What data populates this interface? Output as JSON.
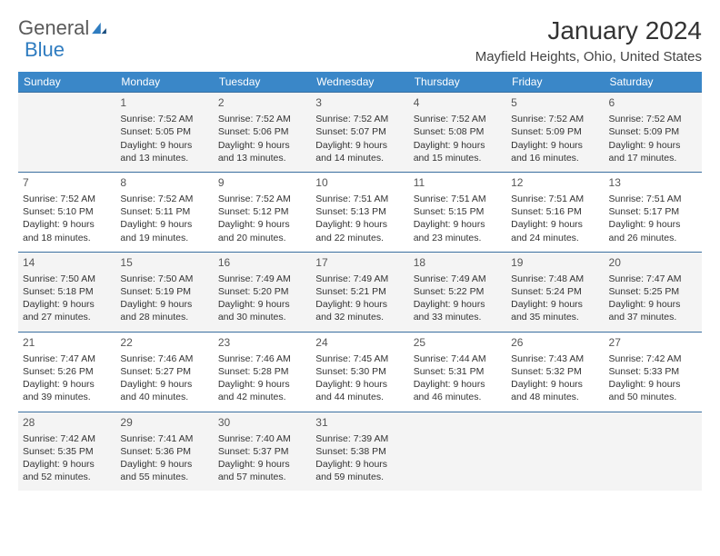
{
  "logo": {
    "part1": "General",
    "part2": "Blue"
  },
  "header": {
    "month_title": "January 2024",
    "location": "Mayfield Heights, Ohio, United States"
  },
  "style": {
    "header_bg": "#3a87c8",
    "header_fg": "#ffffff",
    "row_border": "#3a6fa0",
    "alt_row_bg": "#f4f4f4",
    "logo_gray": "#5a5a5a",
    "logo_blue": "#2f7cc0",
    "font_small": "10.5",
    "font_day": "12",
    "font_title": "28",
    "font_loc": "15"
  },
  "weekdays": [
    "Sunday",
    "Monday",
    "Tuesday",
    "Wednesday",
    "Thursday",
    "Friday",
    "Saturday"
  ],
  "weeks": [
    [
      null,
      {
        "n": "1",
        "sr": "Sunrise: 7:52 AM",
        "ss": "Sunset: 5:05 PM",
        "d1": "Daylight: 9 hours",
        "d2": "and 13 minutes."
      },
      {
        "n": "2",
        "sr": "Sunrise: 7:52 AM",
        "ss": "Sunset: 5:06 PM",
        "d1": "Daylight: 9 hours",
        "d2": "and 13 minutes."
      },
      {
        "n": "3",
        "sr": "Sunrise: 7:52 AM",
        "ss": "Sunset: 5:07 PM",
        "d1": "Daylight: 9 hours",
        "d2": "and 14 minutes."
      },
      {
        "n": "4",
        "sr": "Sunrise: 7:52 AM",
        "ss": "Sunset: 5:08 PM",
        "d1": "Daylight: 9 hours",
        "d2": "and 15 minutes."
      },
      {
        "n": "5",
        "sr": "Sunrise: 7:52 AM",
        "ss": "Sunset: 5:09 PM",
        "d1": "Daylight: 9 hours",
        "d2": "and 16 minutes."
      },
      {
        "n": "6",
        "sr": "Sunrise: 7:52 AM",
        "ss": "Sunset: 5:09 PM",
        "d1": "Daylight: 9 hours",
        "d2": "and 17 minutes."
      }
    ],
    [
      {
        "n": "7",
        "sr": "Sunrise: 7:52 AM",
        "ss": "Sunset: 5:10 PM",
        "d1": "Daylight: 9 hours",
        "d2": "and 18 minutes."
      },
      {
        "n": "8",
        "sr": "Sunrise: 7:52 AM",
        "ss": "Sunset: 5:11 PM",
        "d1": "Daylight: 9 hours",
        "d2": "and 19 minutes."
      },
      {
        "n": "9",
        "sr": "Sunrise: 7:52 AM",
        "ss": "Sunset: 5:12 PM",
        "d1": "Daylight: 9 hours",
        "d2": "and 20 minutes."
      },
      {
        "n": "10",
        "sr": "Sunrise: 7:51 AM",
        "ss": "Sunset: 5:13 PM",
        "d1": "Daylight: 9 hours",
        "d2": "and 22 minutes."
      },
      {
        "n": "11",
        "sr": "Sunrise: 7:51 AM",
        "ss": "Sunset: 5:15 PM",
        "d1": "Daylight: 9 hours",
        "d2": "and 23 minutes."
      },
      {
        "n": "12",
        "sr": "Sunrise: 7:51 AM",
        "ss": "Sunset: 5:16 PM",
        "d1": "Daylight: 9 hours",
        "d2": "and 24 minutes."
      },
      {
        "n": "13",
        "sr": "Sunrise: 7:51 AM",
        "ss": "Sunset: 5:17 PM",
        "d1": "Daylight: 9 hours",
        "d2": "and 26 minutes."
      }
    ],
    [
      {
        "n": "14",
        "sr": "Sunrise: 7:50 AM",
        "ss": "Sunset: 5:18 PM",
        "d1": "Daylight: 9 hours",
        "d2": "and 27 minutes."
      },
      {
        "n": "15",
        "sr": "Sunrise: 7:50 AM",
        "ss": "Sunset: 5:19 PM",
        "d1": "Daylight: 9 hours",
        "d2": "and 28 minutes."
      },
      {
        "n": "16",
        "sr": "Sunrise: 7:49 AM",
        "ss": "Sunset: 5:20 PM",
        "d1": "Daylight: 9 hours",
        "d2": "and 30 minutes."
      },
      {
        "n": "17",
        "sr": "Sunrise: 7:49 AM",
        "ss": "Sunset: 5:21 PM",
        "d1": "Daylight: 9 hours",
        "d2": "and 32 minutes."
      },
      {
        "n": "18",
        "sr": "Sunrise: 7:49 AM",
        "ss": "Sunset: 5:22 PM",
        "d1": "Daylight: 9 hours",
        "d2": "and 33 minutes."
      },
      {
        "n": "19",
        "sr": "Sunrise: 7:48 AM",
        "ss": "Sunset: 5:24 PM",
        "d1": "Daylight: 9 hours",
        "d2": "and 35 minutes."
      },
      {
        "n": "20",
        "sr": "Sunrise: 7:47 AM",
        "ss": "Sunset: 5:25 PM",
        "d1": "Daylight: 9 hours",
        "d2": "and 37 minutes."
      }
    ],
    [
      {
        "n": "21",
        "sr": "Sunrise: 7:47 AM",
        "ss": "Sunset: 5:26 PM",
        "d1": "Daylight: 9 hours",
        "d2": "and 39 minutes."
      },
      {
        "n": "22",
        "sr": "Sunrise: 7:46 AM",
        "ss": "Sunset: 5:27 PM",
        "d1": "Daylight: 9 hours",
        "d2": "and 40 minutes."
      },
      {
        "n": "23",
        "sr": "Sunrise: 7:46 AM",
        "ss": "Sunset: 5:28 PM",
        "d1": "Daylight: 9 hours",
        "d2": "and 42 minutes."
      },
      {
        "n": "24",
        "sr": "Sunrise: 7:45 AM",
        "ss": "Sunset: 5:30 PM",
        "d1": "Daylight: 9 hours",
        "d2": "and 44 minutes."
      },
      {
        "n": "25",
        "sr": "Sunrise: 7:44 AM",
        "ss": "Sunset: 5:31 PM",
        "d1": "Daylight: 9 hours",
        "d2": "and 46 minutes."
      },
      {
        "n": "26",
        "sr": "Sunrise: 7:43 AM",
        "ss": "Sunset: 5:32 PM",
        "d1": "Daylight: 9 hours",
        "d2": "and 48 minutes."
      },
      {
        "n": "27",
        "sr": "Sunrise: 7:42 AM",
        "ss": "Sunset: 5:33 PM",
        "d1": "Daylight: 9 hours",
        "d2": "and 50 minutes."
      }
    ],
    [
      {
        "n": "28",
        "sr": "Sunrise: 7:42 AM",
        "ss": "Sunset: 5:35 PM",
        "d1": "Daylight: 9 hours",
        "d2": "and 52 minutes."
      },
      {
        "n": "29",
        "sr": "Sunrise: 7:41 AM",
        "ss": "Sunset: 5:36 PM",
        "d1": "Daylight: 9 hours",
        "d2": "and 55 minutes."
      },
      {
        "n": "30",
        "sr": "Sunrise: 7:40 AM",
        "ss": "Sunset: 5:37 PM",
        "d1": "Daylight: 9 hours",
        "d2": "and 57 minutes."
      },
      {
        "n": "31",
        "sr": "Sunrise: 7:39 AM",
        "ss": "Sunset: 5:38 PM",
        "d1": "Daylight: 9 hours",
        "d2": "and 59 minutes."
      },
      null,
      null,
      null
    ]
  ]
}
